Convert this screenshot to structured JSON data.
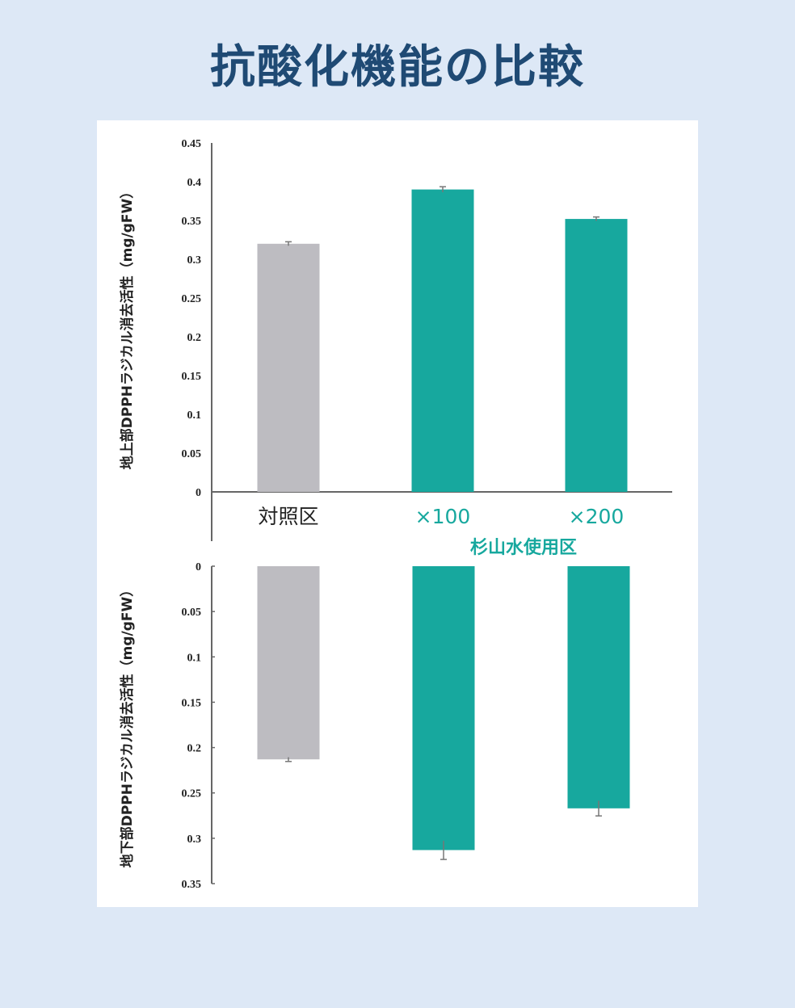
{
  "title": "抗酸化機能の比較",
  "colors": {
    "control": "#bdbcc1",
    "treated": "#17a89e",
    "title": "#1f4a74",
    "background": "#dde8f6"
  },
  "group_label": "杉山水使用区",
  "chart_data": [
    {
      "type": "bar",
      "ylabel": "地上部DPPHラジカル消去活性（mg/gFW）",
      "categories": [
        "対照区",
        "×100",
        "×200"
      ],
      "values": [
        0.32,
        0.39,
        0.352
      ],
      "errors": [
        0.001,
        0.002,
        0.001
      ],
      "ylim": [
        0,
        0.45
      ],
      "yticks": [
        "0",
        "0.05",
        "0.1",
        "0.15",
        "0.2",
        "0.25",
        "0.3",
        "0.35",
        "0.4",
        "0.45"
      ],
      "grid": false
    },
    {
      "type": "bar",
      "orientation": "inverted",
      "ylabel": "地下部DPPHラジカル消去活性（mg/gFW）",
      "categories": [
        "対照区",
        "×100",
        "×200"
      ],
      "values": [
        0.213,
        0.313,
        0.267
      ],
      "errors": [
        0.001,
        0.009,
        0.007
      ],
      "ylim": [
        0,
        0.35
      ],
      "yticks": [
        "0",
        "0.05",
        "0.1",
        "0.15",
        "0.2",
        "0.25",
        "0.3",
        "0.35"
      ],
      "grid": false
    }
  ]
}
